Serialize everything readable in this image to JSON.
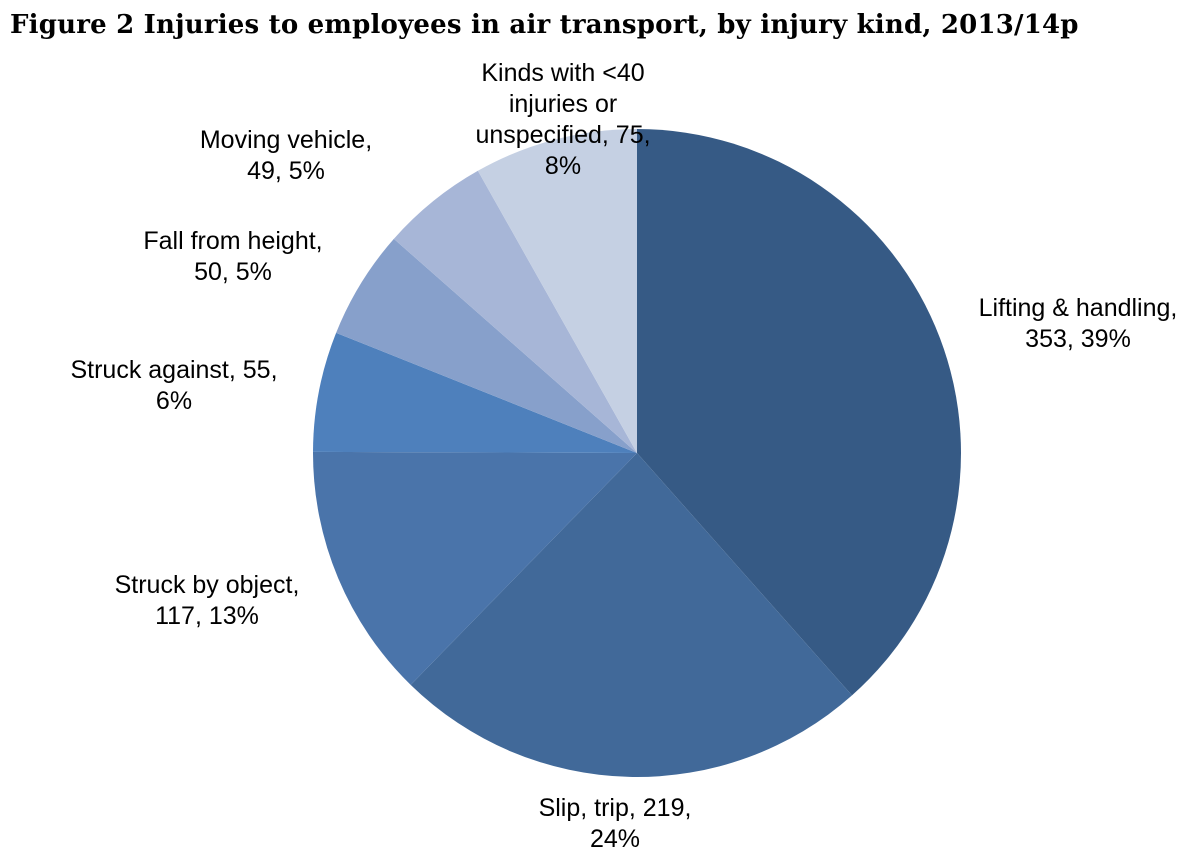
{
  "chart_data": {
    "type": "pie",
    "title": "Figure 2 Injuries to employees in air transport, by injury kind, 2013/14p",
    "slices": [
      {
        "name": "Lifting & handling",
        "value": 353,
        "percent": "39%",
        "color": "#365a85",
        "label_lines": [
          "Lifting & handling,",
          "353, 39%"
        ]
      },
      {
        "name": "Slip, trip",
        "value": 219,
        "percent": "24%",
        "color": "#416999",
        "label_lines": [
          "Slip, trip, 219,",
          "24%"
        ]
      },
      {
        "name": "Struck by object",
        "value": 117,
        "percent": "13%",
        "color": "#4a74aa",
        "label_lines": [
          "Struck by object,",
          "117, 13%"
        ]
      },
      {
        "name": "Struck against",
        "value": 55,
        "percent": "6%",
        "color": "#4e80bc",
        "label_lines": [
          "Struck against, 55,",
          "6%"
        ]
      },
      {
        "name": "Fall from height",
        "value": 50,
        "percent": "5%",
        "color": "#87a0cb",
        "label_lines": [
          "Fall from height,",
          "50, 5%"
        ]
      },
      {
        "name": "Moving vehicle",
        "value": 49,
        "percent": "5%",
        "color": "#a7b6d7",
        "label_lines": [
          "Moving vehicle,",
          "49, 5%"
        ]
      },
      {
        "name": "Kinds with <40 injuries or unspecified",
        "value": 75,
        "percent": "8%",
        "color": "#c5d0e3",
        "label_lines": [
          "Kinds with <40",
          "injuries or",
          "unspecified, 75,",
          "8%"
        ]
      }
    ]
  }
}
